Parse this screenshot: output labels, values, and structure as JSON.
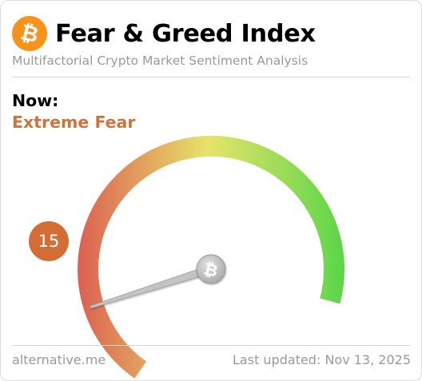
{
  "header": {
    "logo_icon": "bitcoin-icon",
    "logo_glyph": "₿",
    "title": "Fear & Greed Index",
    "subtitle": "Multifactorial Crypto Market Sentiment Analysis"
  },
  "current": {
    "label": "Now:",
    "classification": "Extreme Fear",
    "value": "15",
    "value_number": 15,
    "scale_min": 0,
    "scale_max": 100
  },
  "needle": {
    "hub_icon": "bitcoin-icon",
    "hub_glyph": "₿"
  },
  "colors": {
    "classification_text": "#d0733c",
    "value_badge": "#d46d35",
    "bitcoin_orange": "#f7931a",
    "gauge_start": "#dc5f52",
    "gauge_mid": "#e8e36a",
    "gauge_end": "#5fd64a",
    "needle": "#c4c4c4"
  },
  "footer": {
    "source": "alternative.me",
    "updated": "Last updated: Nov 13, 2025"
  }
}
